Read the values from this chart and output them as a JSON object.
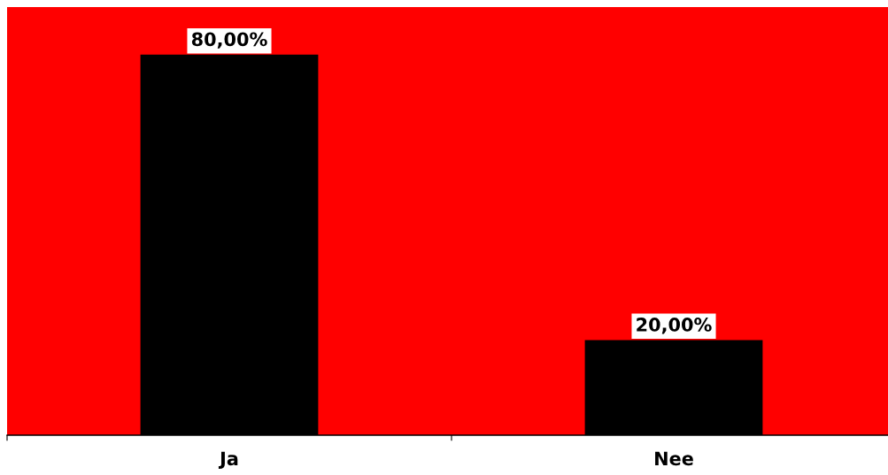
{
  "chart_data": {
    "type": "bar",
    "categories": [
      "Ja",
      "Nee"
    ],
    "values": [
      80,
      20
    ],
    "color": "#000000",
    "value_labels": [
      "80,00%",
      "20,00%"
    ],
    "ylim": [
      0,
      90
    ],
    "tick_labels": "x",
    "grid": false,
    "legend": false
  }
}
